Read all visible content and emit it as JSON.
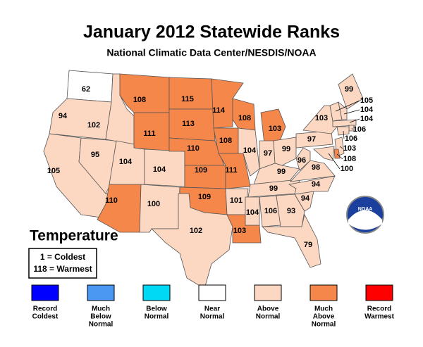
{
  "header": {
    "title": "January 2012 Statewide Ranks",
    "subtitle": "National Climatic Data Center/NESDIS/NOAA"
  },
  "map": {
    "states": [
      {
        "rank": 62,
        "color": "#ffffff"
      },
      {
        "rank": 94,
        "color": "#fcd7c2"
      },
      {
        "rank": 105,
        "color": "#fcd7c2"
      },
      {
        "rank": 95,
        "color": "#fcd7c2"
      },
      {
        "rank": 102,
        "color": "#fcd7c2"
      },
      {
        "rank": 108,
        "color": "#f5874b"
      },
      {
        "rank": 111,
        "color": "#f5874b"
      },
      {
        "rank": 104,
        "color": "#fcd7c2"
      },
      {
        "rank": 104,
        "color": "#fcd7c2"
      },
      {
        "rank": 110,
        "color": "#f5874b"
      },
      {
        "rank": 100,
        "color": "#fcd7c2"
      },
      {
        "rank": 115,
        "color": "#f5874b"
      },
      {
        "rank": 113,
        "color": "#f5874b"
      },
      {
        "rank": 110,
        "color": "#f5874b"
      },
      {
        "rank": 109,
        "color": "#f5874b"
      },
      {
        "rank": 109,
        "color": "#f5874b"
      },
      {
        "rank": 102,
        "color": "#fcd7c2"
      },
      {
        "rank": 114,
        "color": "#f5874b"
      },
      {
        "rank": 108,
        "color": "#f5874b"
      },
      {
        "rank": 111,
        "color": "#f5874b"
      },
      {
        "rank": 101,
        "color": "#fcd7c2"
      },
      {
        "rank": 103,
        "color": "#f5874b"
      },
      {
        "rank": 108,
        "color": "#f5874b"
      },
      {
        "rank": 104,
        "color": "#fcd7c2"
      },
      {
        "rank": 103,
        "color": "#f5874b"
      },
      {
        "rank": 97,
        "color": "#fcd7c2"
      },
      {
        "rank": 99,
        "color": "#fcd7c2"
      },
      {
        "rank": 99,
        "color": "#fcd7c2"
      },
      {
        "rank": 99,
        "color": "#fcd7c2"
      },
      {
        "rank": 104,
        "color": "#fcd7c2"
      },
      {
        "rank": 106,
        "color": "#fcd7c2"
      },
      {
        "rank": 93,
        "color": "#fcd7c2"
      },
      {
        "rank": 79,
        "color": "#fcd7c2"
      },
      {
        "rank": 94,
        "color": "#fcd7c2"
      },
      {
        "rank": 94,
        "color": "#fcd7c2"
      },
      {
        "rank": 98,
        "color": "#fcd7c2"
      },
      {
        "rank": 96,
        "color": "#fcd7c2"
      },
      {
        "rank": 97,
        "color": "#fcd7c2"
      },
      {
        "rank": 103,
        "color": "#fcd7c2"
      },
      {
        "rank": 99,
        "color": "#fcd7c2"
      },
      {
        "rank": 105,
        "color": "#fcd7c2"
      },
      {
        "rank": 104,
        "color": "#fcd7c2"
      },
      {
        "rank": 104,
        "color": "#fcd7c2"
      },
      {
        "rank": 106,
        "color": "#fcd7c2"
      },
      {
        "rank": 106,
        "color": "#fcd7c2"
      },
      {
        "rank": 103,
        "color": "#fcd7c2"
      },
      {
        "rank": 108,
        "color": "#f5874b"
      },
      {
        "rank": 100,
        "color": "#fcd7c2"
      }
    ]
  },
  "legend": {
    "title": "Temperature",
    "key": [
      "1 = Coldest",
      "118 = Warmest"
    ],
    "items": [
      {
        "color": "#0000ff",
        "label": [
          "Record",
          "Coldest"
        ]
      },
      {
        "color": "#4a98f2",
        "label": [
          "Much",
          "Below",
          "Normal"
        ]
      },
      {
        "color": "#00d9f5",
        "label": [
          "Below",
          "Normal"
        ]
      },
      {
        "color": "#ffffff",
        "label": [
          "Near",
          "Normal"
        ]
      },
      {
        "color": "#fcd7c2",
        "label": [
          "Above",
          "Normal"
        ]
      },
      {
        "color": "#f5874b",
        "label": [
          "Much",
          "Above",
          "Normal"
        ]
      },
      {
        "color": "#ff0000",
        "label": [
          "Record",
          "Warmest"
        ]
      }
    ]
  },
  "logo": {
    "text": "NOAA"
  }
}
